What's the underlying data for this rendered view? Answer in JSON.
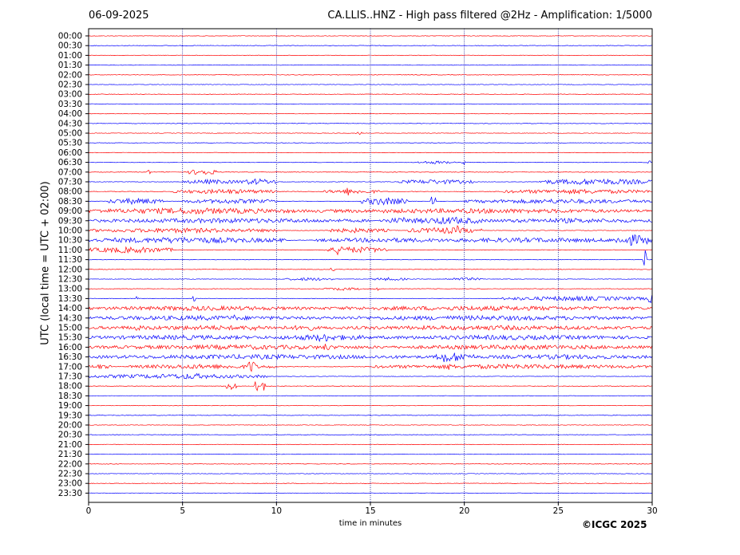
{
  "header": {
    "date": "06-09-2025",
    "title": "CA.LLIS..HNZ - High pass filtered @2Hz - Amplification: 1/5000"
  },
  "footer": {
    "copyright": "©ICGC 2025"
  },
  "chart_data": {
    "type": "line",
    "title": "CA.LLIS..HNZ - High pass filtered @2Hz - Amplification: 1/5000",
    "xlabel": "time in minutes",
    "ylabel": "UTC (local time = UTC + 02:00)",
    "xlim": [
      0,
      30
    ],
    "xticks": [
      0,
      5,
      10,
      15,
      20,
      25,
      30
    ],
    "vertical_gridlines": [
      5,
      10,
      15,
      20,
      25
    ],
    "colors": {
      "even_row": "#ff0000",
      "odd_row": "#0000ff",
      "grid": "#00008b"
    },
    "rows": [
      {
        "label": "00:00",
        "activity": []
      },
      {
        "label": "00:30",
        "activity": []
      },
      {
        "label": "01:00",
        "activity": []
      },
      {
        "label": "01:30",
        "activity": []
      },
      {
        "label": "02:00",
        "activity": []
      },
      {
        "label": "02:30",
        "activity": []
      },
      {
        "label": "03:00",
        "activity": []
      },
      {
        "label": "03:30",
        "activity": []
      },
      {
        "label": "04:00",
        "activity": []
      },
      {
        "label": "04:30",
        "activity": []
      },
      {
        "label": "05:00",
        "activity": [
          [
            14.2,
            14.6,
            2
          ]
        ]
      },
      {
        "label": "05:30",
        "activity": []
      },
      {
        "label": "06:00",
        "activity": []
      },
      {
        "label": "06:30",
        "activity": [
          [
            17.5,
            19.5,
            2
          ],
          [
            19.8,
            20.2,
            3
          ],
          [
            29.7,
            30,
            3
          ]
        ]
      },
      {
        "label": "07:00",
        "activity": [
          [
            3.1,
            3.3,
            4
          ],
          [
            5.3,
            6.8,
            4
          ]
        ]
      },
      {
        "label": "07:30",
        "activity": [
          [
            5,
            8,
            3
          ],
          [
            8,
            10,
            4
          ],
          [
            16.5,
            20.5,
            3
          ],
          [
            24,
            30,
            4
          ]
        ]
      },
      {
        "label": "08:00",
        "activity": [
          [
            4.5,
            10,
            3
          ],
          [
            12.5,
            15.5,
            3
          ],
          [
            22,
            30,
            3
          ],
          [
            13.7,
            13.9,
            6
          ]
        ]
      },
      {
        "label": "08:30",
        "activity": [
          [
            1,
            4,
            4
          ],
          [
            5,
            10,
            3
          ],
          [
            14.5,
            17,
            5
          ],
          [
            18.2,
            18.5,
            8
          ],
          [
            20,
            30,
            3
          ]
        ]
      },
      {
        "label": "09:00",
        "activity": [
          [
            0,
            11,
            4
          ],
          [
            11,
            30,
            3
          ]
        ]
      },
      {
        "label": "09:30",
        "activity": [
          [
            0,
            15,
            3
          ],
          [
            15.5,
            18,
            4
          ],
          [
            17.5,
            21,
            5
          ],
          [
            21,
            30,
            3
          ]
        ]
      },
      {
        "label": "10:00",
        "activity": [
          [
            0,
            10,
            3
          ],
          [
            12.5,
            16,
            3
          ],
          [
            17,
            21,
            4
          ],
          [
            19.5,
            19.7,
            7
          ]
        ]
      },
      {
        "label": "10:30",
        "activity": [
          [
            0,
            10.5,
            4
          ],
          [
            12,
            20,
            3
          ],
          [
            17,
            30,
            3
          ],
          [
            28,
            30,
            7
          ]
        ]
      },
      {
        "label": "11:00",
        "activity": [
          [
            0,
            4.5,
            4
          ],
          [
            12.5,
            16,
            4
          ],
          [
            13.2,
            13.6,
            9
          ]
        ]
      },
      {
        "label": "11:30",
        "activity": [
          [
            29.5,
            29.7,
            14
          ]
        ]
      },
      {
        "label": "12:00",
        "activity": [
          [
            12.9,
            13.1,
            3
          ]
        ]
      },
      {
        "label": "12:30",
        "activity": [
          [
            10.5,
            13,
            2
          ],
          [
            15,
            17,
            2
          ],
          [
            19,
            21,
            2
          ]
        ]
      },
      {
        "label": "13:00",
        "activity": [
          [
            12.5,
            14.5,
            2
          ],
          [
            15.2,
            15.4,
            4
          ]
        ]
      },
      {
        "label": "13:30",
        "activity": [
          [
            2.5,
            2.7,
            4
          ],
          [
            5.5,
            5.7,
            4
          ],
          [
            22,
            30,
            3
          ],
          [
            29.8,
            30,
            7
          ]
        ]
      },
      {
        "label": "14:00",
        "activity": [
          [
            0,
            12,
            3
          ],
          [
            12,
            30,
            3
          ]
        ]
      },
      {
        "label": "14:30",
        "activity": [
          [
            0,
            12,
            3
          ],
          [
            7.5,
            8,
            4
          ],
          [
            12,
            30,
            3
          ]
        ]
      },
      {
        "label": "15:00",
        "activity": [
          [
            0,
            13,
            3
          ],
          [
            2.5,
            2.8,
            6
          ],
          [
            8.6,
            8.9,
            6
          ],
          [
            11,
            12,
            5
          ],
          [
            13,
            30,
            3
          ]
        ]
      },
      {
        "label": "15:30",
        "activity": [
          [
            0,
            10,
            3
          ],
          [
            10,
            15,
            4
          ],
          [
            12,
            13,
            6
          ],
          [
            15,
            30,
            3
          ]
        ]
      },
      {
        "label": "16:00",
        "activity": [
          [
            0,
            16,
            3
          ],
          [
            12.5,
            12.8,
            6
          ],
          [
            16,
            30,
            3
          ]
        ]
      },
      {
        "label": "16:30",
        "activity": [
          [
            0,
            18.5,
            3
          ],
          [
            18.5,
            20.5,
            6
          ],
          [
            20.5,
            30,
            3
          ],
          [
            18.8,
            19.1,
            10
          ]
        ]
      },
      {
        "label": "17:00",
        "activity": [
          [
            0,
            1.2,
            3
          ],
          [
            2,
            10,
            3
          ],
          [
            8.5,
            8.9,
            10
          ],
          [
            15,
            30,
            3
          ],
          [
            19,
            19.3,
            5
          ]
        ]
      },
      {
        "label": "17:30",
        "activity": [
          [
            0,
            9.5,
            3
          ],
          [
            4.5,
            6.5,
            4
          ]
        ]
      },
      {
        "label": "18:00",
        "activity": [
          [
            7.3,
            7.9,
            5
          ],
          [
            8.8,
            9,
            9
          ],
          [
            9.2,
            9.4,
            8
          ]
        ]
      },
      {
        "label": "18:30",
        "activity": []
      },
      {
        "label": "19:00",
        "activity": []
      },
      {
        "label": "19:30",
        "activity": []
      },
      {
        "label": "20:00",
        "activity": []
      },
      {
        "label": "20:30",
        "activity": []
      },
      {
        "label": "21:00",
        "activity": []
      },
      {
        "label": "21:30",
        "activity": []
      },
      {
        "label": "22:00",
        "activity": []
      },
      {
        "label": "22:30",
        "activity": []
      },
      {
        "label": "23:00",
        "activity": []
      },
      {
        "label": "23:30",
        "activity": []
      }
    ]
  }
}
